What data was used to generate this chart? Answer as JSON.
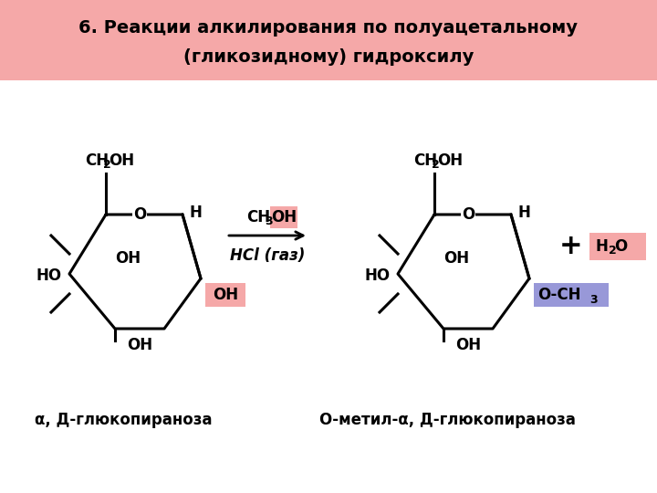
{
  "title_line1": "6. Реакции алкилирования по полуацетальному",
  "title_line2": "(гликозидному) гидроксилу",
  "title_bg": "#f5a8a8",
  "bg_color": "#ffffff",
  "title_fontsize": 14,
  "label1": "α, Д-глюкопираноза",
  "label2": "О-метил-α, Д-глюкопираноза",
  "highlight_OH_color": "#f5a8a8",
  "highlight_OCH3_color": "#9898d8",
  "highlight_CH3OH_color": "#f5a8a8",
  "highlight_H2O_color": "#f5a8a8",
  "text_color": "#000000"
}
